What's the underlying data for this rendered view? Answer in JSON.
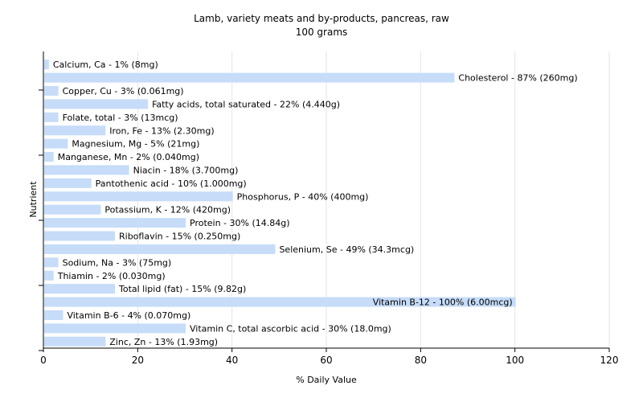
{
  "chart_data": {
    "type": "bar",
    "orientation": "horizontal",
    "title": "Lamb, variety meats and by-products, pancreas, raw",
    "subtitle": "100 grams",
    "xlabel": "% Daily Value",
    "ylabel": "Nutrient",
    "xlim": [
      0,
      120
    ],
    "xticks": [
      0,
      20,
      40,
      60,
      80,
      100,
      120
    ],
    "grid": true,
    "bar_color": "#c6dcf8",
    "categories": [
      "Calcium, Ca",
      "Cholesterol",
      "Copper, Cu",
      "Fatty acids, total saturated",
      "Folate, total",
      "Iron, Fe",
      "Magnesium, Mg",
      "Manganese, Mn",
      "Niacin",
      "Pantothenic acid",
      "Phosphorus, P",
      "Potassium, K",
      "Protein",
      "Riboflavin",
      "Selenium, Se",
      "Sodium, Na",
      "Thiamin",
      "Total lipid (fat)",
      "Vitamin B-12",
      "Vitamin B-6",
      "Vitamin C, total ascorbic acid",
      "Zinc, Zn"
    ],
    "values": [
      1,
      87,
      3,
      22,
      3,
      13,
      5,
      2,
      18,
      10,
      40,
      12,
      30,
      15,
      49,
      3,
      2,
      15,
      100,
      4,
      30,
      13
    ],
    "labels": [
      "Calcium, Ca - 1% (8mg)",
      "Cholesterol - 87% (260mg)",
      "Copper, Cu - 3% (0.061mg)",
      "Fatty acids, total saturated - 22% (4.440g)",
      "Folate, total - 3% (13mcg)",
      "Iron, Fe - 13% (2.30mg)",
      "Magnesium, Mg - 5% (21mg)",
      "Manganese, Mn - 2% (0.040mg)",
      "Niacin - 18% (3.700mg)",
      "Pantothenic acid - 10% (1.000mg)",
      "Phosphorus, P - 40% (400mg)",
      "Potassium, K - 12% (420mg)",
      "Protein - 30% (14.84g)",
      "Riboflavin - 15% (0.250mg)",
      "Selenium, Se - 49% (34.3mcg)",
      "Sodium, Na - 3% (75mg)",
      "Thiamin - 2% (0.030mg)",
      "Total lipid (fat) - 15% (9.82g)",
      "Vitamin B-12 - 100% (6.00mcg)",
      "Vitamin B-6 - 4% (0.070mg)",
      "Vitamin C, total ascorbic acid - 30% (18.0mg)",
      "Zinc, Zn - 13% (1.93mg)"
    ]
  }
}
